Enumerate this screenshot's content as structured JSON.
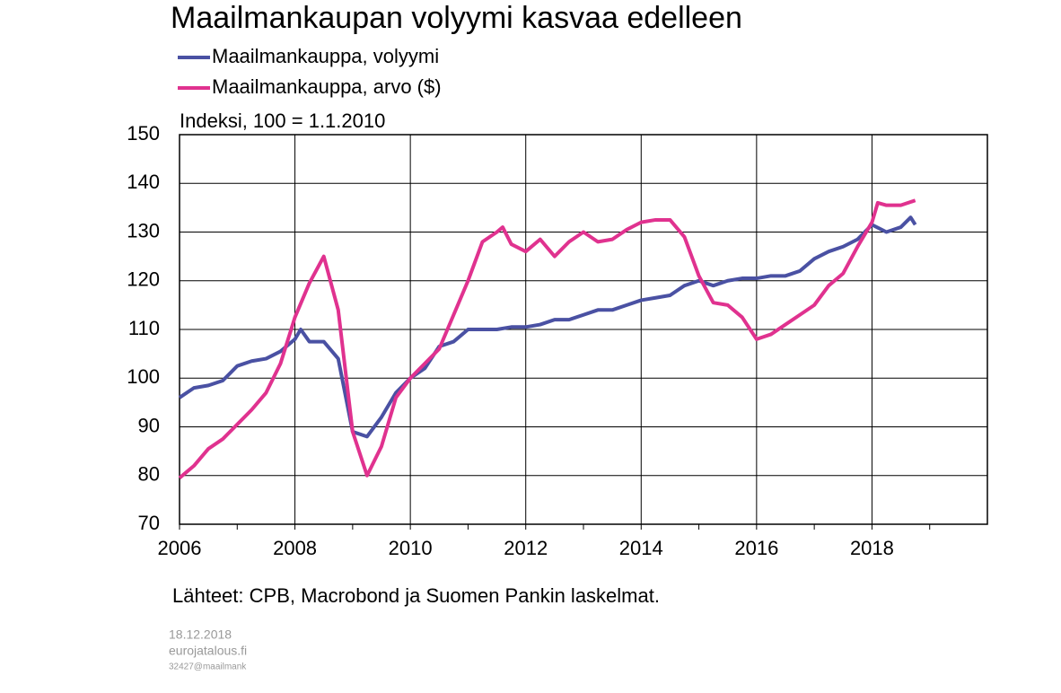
{
  "chart_data": {
    "type": "line",
    "title": "Maailmankaupan volyymi kasvaa edelleen",
    "ylabel": "Indeksi, 100 = 1.1.2010",
    "source": "Lähteet: CPB, Macrobond ja Suomen Pankin laskelmat.",
    "footer": [
      "18.12.2018",
      "eurojatalous.fi",
      "32427@maailmank"
    ],
    "xlim": [
      2006,
      2020
    ],
    "xticks": [
      2006,
      2008,
      2010,
      2012,
      2014,
      2016,
      2018
    ],
    "xticks_minor": [
      2007,
      2009,
      2011,
      2013,
      2015,
      2017,
      2019
    ],
    "ylim": [
      70,
      150
    ],
    "yticks": [
      70,
      80,
      90,
      100,
      110,
      120,
      130,
      140,
      150
    ],
    "grid": true,
    "series": [
      {
        "name": "Maailmankauppa, volyymi",
        "color": "#4a51a3",
        "x": [
          2006.0,
          2006.25,
          2006.5,
          2006.75,
          2007.0,
          2007.25,
          2007.5,
          2007.75,
          2008.0,
          2008.1,
          2008.25,
          2008.5,
          2008.75,
          2009.0,
          2009.25,
          2009.5,
          2009.75,
          2010.0,
          2010.25,
          2010.5,
          2010.75,
          2011.0,
          2011.25,
          2011.5,
          2011.75,
          2012.0,
          2012.25,
          2012.5,
          2012.75,
          2013.0,
          2013.25,
          2013.5,
          2013.75,
          2014.0,
          2014.25,
          2014.5,
          2014.75,
          2015.0,
          2015.25,
          2015.5,
          2015.75,
          2016.0,
          2016.25,
          2016.5,
          2016.75,
          2017.0,
          2017.25,
          2017.5,
          2017.75,
          2018.0,
          2018.25,
          2018.5,
          2018.67,
          2018.75
        ],
        "values": [
          96,
          98,
          98.5,
          99.5,
          102.5,
          103.5,
          104,
          105.5,
          108,
          110,
          107.5,
          107.5,
          104,
          89,
          88,
          92,
          97,
          100,
          102,
          106.5,
          107.5,
          110,
          110,
          110,
          110.5,
          110.5,
          111,
          112,
          112,
          113,
          114,
          114,
          115,
          116,
          116.5,
          117,
          119,
          120,
          119,
          120,
          120.5,
          120.5,
          121,
          121,
          122,
          124.5,
          126,
          127,
          128.5,
          131.5,
          130,
          131,
          133,
          131.5
        ]
      },
      {
        "name": "Maailmankauppa, arvo ($)",
        "color": "#e0328f",
        "x": [
          2006.0,
          2006.25,
          2006.5,
          2006.75,
          2007.0,
          2007.25,
          2007.5,
          2007.75,
          2008.0,
          2008.25,
          2008.5,
          2008.75,
          2009.0,
          2009.25,
          2009.5,
          2009.75,
          2010.0,
          2010.25,
          2010.5,
          2010.75,
          2011.0,
          2011.25,
          2011.5,
          2011.6,
          2011.75,
          2012.0,
          2012.25,
          2012.5,
          2012.75,
          2013.0,
          2013.25,
          2013.5,
          2013.75,
          2014.0,
          2014.25,
          2014.5,
          2014.75,
          2015.0,
          2015.25,
          2015.5,
          2015.75,
          2016.0,
          2016.25,
          2016.5,
          2016.75,
          2017.0,
          2017.25,
          2017.5,
          2017.75,
          2018.0,
          2018.1,
          2018.25,
          2018.5,
          2018.75
        ],
        "values": [
          79.5,
          82,
          85.5,
          87.5,
          90.5,
          93.5,
          97,
          103,
          112.5,
          119.5,
          125,
          114,
          89,
          80,
          86,
          96,
          100,
          103,
          106,
          113,
          120,
          128,
          130,
          131,
          127.5,
          126,
          128.5,
          125,
          128,
          130,
          128,
          128.5,
          130.5,
          132,
          132.5,
          132.5,
          129,
          121,
          115.5,
          115,
          112.5,
          108,
          109,
          111,
          113,
          115,
          119,
          121.5,
          127,
          132,
          136,
          135.5,
          135.5,
          136.5
        ]
      }
    ]
  }
}
